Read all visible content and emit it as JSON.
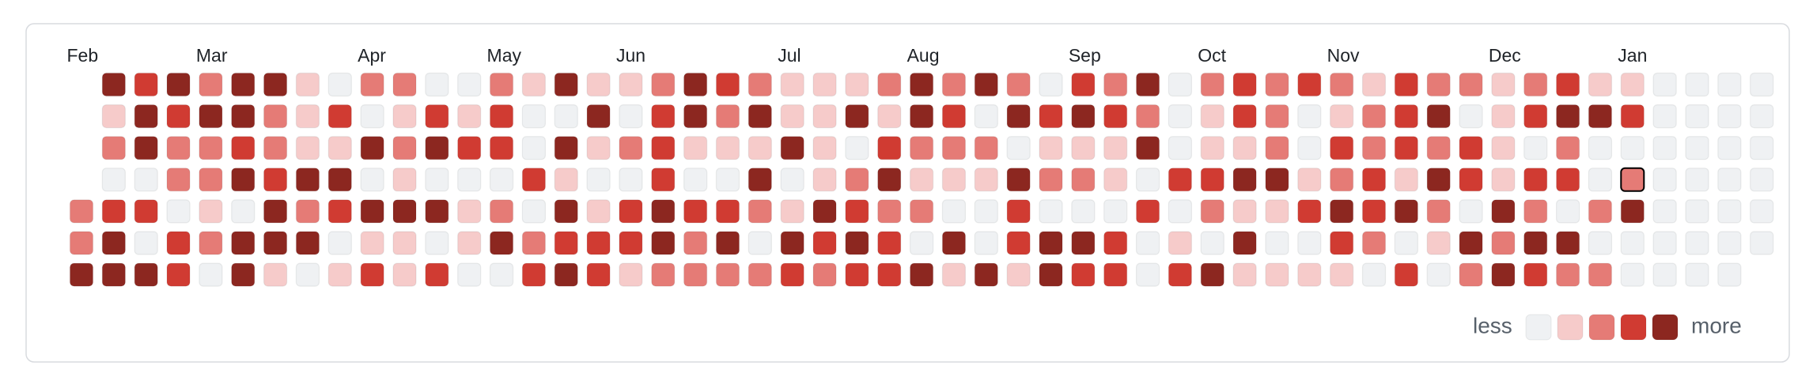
{
  "chart_data": {
    "type": "heatmap",
    "categories": [
      "Feb",
      null,
      null,
      null,
      "Mar",
      null,
      null,
      null,
      null,
      "Apr",
      null,
      null,
      null,
      "May",
      null,
      null,
      null,
      "Jun",
      null,
      null,
      null,
      null,
      "Jul",
      null,
      null,
      null,
      "Aug",
      null,
      null,
      null,
      null,
      "Sep",
      null,
      null,
      null,
      "Oct",
      null,
      null,
      null,
      "Nov",
      null,
      null,
      null,
      null,
      "Dec",
      null,
      null,
      null,
      "Jan",
      null,
      null,
      null,
      null
    ],
    "values": [
      [
        null,
        4,
        3,
        4,
        2,
        4,
        4,
        1,
        0,
        2,
        2,
        0,
        0,
        2,
        1,
        4,
        1,
        1,
        2,
        4,
        3,
        2,
        1,
        1,
        1,
        2,
        4,
        2,
        4,
        2,
        0,
        3,
        2,
        4,
        0,
        2,
        3,
        2,
        3,
        2,
        1,
        3,
        2,
        2,
        1,
        2,
        3,
        1,
        1,
        0,
        0,
        0,
        0
      ],
      [
        null,
        1,
        4,
        3,
        4,
        4,
        2,
        1,
        3,
        0,
        1,
        3,
        1,
        3,
        0,
        0,
        4,
        0,
        3,
        4,
        2,
        4,
        1,
        1,
        4,
        1,
        4,
        3,
        0,
        4,
        3,
        4,
        3,
        2,
        0,
        1,
        3,
        2,
        0,
        1,
        2,
        3,
        4,
        0,
        1,
        3,
        4,
        4,
        3,
        0,
        0,
        0,
        0
      ],
      [
        null,
        2,
        4,
        2,
        2,
        3,
        2,
        1,
        1,
        4,
        2,
        4,
        3,
        3,
        0,
        4,
        1,
        2,
        3,
        1,
        1,
        1,
        4,
        1,
        0,
        3,
        2,
        2,
        2,
        0,
        1,
        1,
        1,
        4,
        0,
        1,
        1,
        2,
        0,
        3,
        2,
        3,
        2,
        3,
        1,
        0,
        2,
        0,
        0,
        0,
        0,
        0,
        0
      ],
      [
        null,
        0,
        0,
        2,
        2,
        4,
        3,
        4,
        4,
        0,
        1,
        0,
        0,
        0,
        3,
        1,
        0,
        0,
        3,
        0,
        0,
        4,
        0,
        1,
        2,
        4,
        1,
        1,
        1,
        4,
        2,
        2,
        1,
        0,
        3,
        3,
        4,
        4,
        1,
        2,
        3,
        1,
        4,
        3,
        1,
        3,
        3,
        0,
        2,
        0,
        0,
        0,
        0
      ],
      [
        2,
        3,
        3,
        0,
        1,
        0,
        4,
        2,
        3,
        4,
        4,
        4,
        1,
        2,
        0,
        4,
        1,
        3,
        4,
        3,
        3,
        2,
        1,
        4,
        3,
        2,
        2,
        0,
        0,
        3,
        0,
        0,
        0,
        3,
        0,
        2,
        1,
        1,
        3,
        4,
        3,
        4,
        2,
        0,
        4,
        2,
        0,
        2,
        4,
        0,
        0,
        0,
        0
      ],
      [
        2,
        4,
        0,
        3,
        2,
        4,
        4,
        4,
        0,
        1,
        1,
        0,
        1,
        4,
        2,
        3,
        3,
        3,
        4,
        2,
        4,
        0,
        4,
        3,
        4,
        3,
        0,
        4,
        0,
        3,
        4,
        4,
        3,
        0,
        1,
        0,
        4,
        0,
        0,
        3,
        2,
        0,
        1,
        4,
        2,
        4,
        4,
        0,
        0,
        0,
        0,
        0,
        0
      ],
      [
        4,
        4,
        4,
        3,
        0,
        4,
        1,
        0,
        1,
        3,
        1,
        3,
        0,
        0,
        3,
        4,
        3,
        1,
        2,
        2,
        2,
        2,
        3,
        2,
        3,
        3,
        4,
        1,
        4,
        1,
        4,
        3,
        3,
        0,
        3,
        4,
        1,
        1,
        1,
        1,
        0,
        3,
        0,
        2,
        4,
        3,
        2,
        2,
        0,
        0,
        0,
        0,
        null
      ]
    ],
    "colors": [
      "#eff1f3",
      "#f6cbca",
      "#e57b76",
      "#d03b32",
      "#8c2720"
    ],
    "selected": {
      "row": 3,
      "column": 48
    },
    "legend": {
      "low": "less",
      "high": "more"
    }
  }
}
